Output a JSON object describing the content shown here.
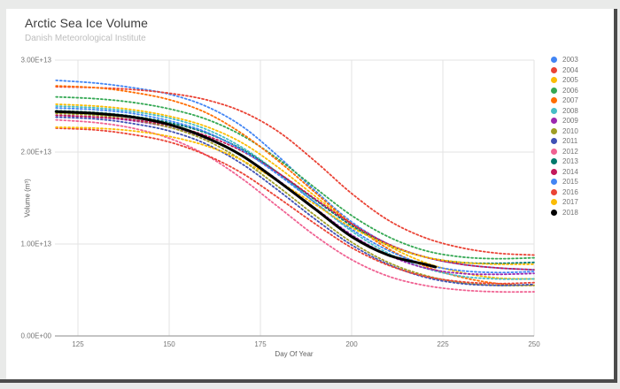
{
  "chart_data": {
    "type": "line",
    "title": "Arctic Sea Ice Volume",
    "subtitle": "Danish Meteorological Institute",
    "xlabel": "Day Of Year",
    "ylabel": "Volume (m³)",
    "xlim": [
      118.5,
      250
    ],
    "ylim": [
      0,
      30000000000000.0
    ],
    "grid": true,
    "legend_position": "right",
    "x_ticks": [
      125,
      150,
      175,
      200,
      225,
      250
    ],
    "y_ticks": [
      {
        "label": "0.00E+00",
        "value": 0
      },
      {
        "label": "1.00E+13",
        "value": 10000000000000.0
      },
      {
        "label": "2.00E+13",
        "value": 20000000000000.0
      },
      {
        "label": "3.00E+13",
        "value": 30000000000000.0
      }
    ],
    "days": [
      119,
      130,
      140,
      150,
      160,
      170,
      180,
      190,
      200,
      210,
      220,
      230,
      240,
      250
    ],
    "series": [
      {
        "name": "2003",
        "color": "#4285F4",
        "style": "dotted",
        "values": [
          27800000000000.0,
          27500000000000.0,
          27000000000000.0,
          26300000000000.0,
          25000000000000.0,
          22800000000000.0,
          19500000000000.0,
          15800000000000.0,
          12400000000000.0,
          10000000000000.0,
          8600000000000.0,
          7800000000000.0,
          7400000000000.0,
          7200000000000.0
        ]
      },
      {
        "name": "2004",
        "color": "#EA4335",
        "style": "dotted",
        "values": [
          27100000000000.0,
          27000000000000.0,
          26800000000000.0,
          26400000000000.0,
          25700000000000.0,
          24400000000000.0,
          22200000000000.0,
          19000000000000.0,
          15500000000000.0,
          12600000000000.0,
          10700000000000.0,
          9600000000000.0,
          9000000000000.0,
          8800000000000.0
        ]
      },
      {
        "name": "2005",
        "color": "#FBBC04",
        "style": "dotted",
        "values": [
          25200000000000.0,
          25000000000000.0,
          24600000000000.0,
          23900000000000.0,
          22800000000000.0,
          21000000000000.0,
          18300000000000.0,
          15200000000000.0,
          12200000000000.0,
          9800000000000.0,
          8000000000000.0,
          6900000000000.0,
          6300000000000.0,
          6200000000000.0
        ]
      },
      {
        "name": "2006",
        "color": "#34A853",
        "style": "dotted",
        "values": [
          26000000000000.0,
          25800000000000.0,
          25400000000000.0,
          24700000000000.0,
          23600000000000.0,
          21800000000000.0,
          19200000000000.0,
          16100000000000.0,
          13100000000000.0,
          10800000000000.0,
          9300000000000.0,
          8600000000000.0,
          8400000000000.0,
          8500000000000.0
        ]
      },
      {
        "name": "2007",
        "color": "#FF6D01",
        "style": "dotted",
        "values": [
          27200000000000.0,
          27000000000000.0,
          26500000000000.0,
          25700000000000.0,
          24300000000000.0,
          22000000000000.0,
          19000000000000.0,
          15600000000000.0,
          12200000000000.0,
          9500000000000.0,
          7600000000000.0,
          6400000000000.0,
          5700000000000.0,
          5500000000000.0
        ]
      },
      {
        "name": "2008",
        "color": "#46BDC6",
        "style": "dotted",
        "values": [
          25000000000000.0,
          24800000000000.0,
          24400000000000.0,
          23700000000000.0,
          22500000000000.0,
          20500000000000.0,
          17700000000000.0,
          14500000000000.0,
          11400000000000.0,
          9000000000000.0,
          7400000000000.0,
          6500000000000.0,
          6200000000000.0,
          6200000000000.0
        ]
      },
      {
        "name": "2009",
        "color": "#9C27B0",
        "style": "dotted",
        "values": [
          24000000000000.0,
          23800000000000.0,
          23400000000000.0,
          22700000000000.0,
          21500000000000.0,
          19600000000000.0,
          16900000000000.0,
          13900000000000.0,
          11000000000000.0,
          8800000000000.0,
          7400000000000.0,
          6800000000000.0,
          6700000000000.0,
          6800000000000.0
        ]
      },
      {
        "name": "2010",
        "color": "#9E9D24",
        "style": "dotted",
        "values": [
          24200000000000.0,
          24000000000000.0,
          23500000000000.0,
          22700000000000.0,
          21300000000000.0,
          19100000000000.0,
          16200000000000.0,
          13100000000000.0,
          10200000000000.0,
          8000000000000.0,
          6600000000000.0,
          5800000000000.0,
          5500000000000.0,
          5500000000000.0
        ]
      },
      {
        "name": "2011",
        "color": "#3F51B5",
        "style": "dotted",
        "values": [
          23800000000000.0,
          23600000000000.0,
          23100000000000.0,
          22300000000000.0,
          20900000000000.0,
          18700000000000.0,
          15800000000000.0,
          12700000000000.0,
          9900000000000.0,
          7800000000000.0,
          6400000000000.0,
          5700000000000.0,
          5500000000000.0,
          5600000000000.0
        ]
      },
      {
        "name": "2012",
        "color": "#F06292",
        "style": "dotted",
        "values": [
          23500000000000.0,
          23200000000000.0,
          22600000000000.0,
          21500000000000.0,
          19700000000000.0,
          17100000000000.0,
          14000000000000.0,
          10900000000000.0,
          8300000000000.0,
          6500000000000.0,
          5500000000000.0,
          5000000000000.0,
          4800000000000.0,
          4800000000000.0
        ]
      },
      {
        "name": "2013",
        "color": "#00796B",
        "style": "dotted",
        "values": [
          24500000000000.0,
          24300000000000.0,
          23900000000000.0,
          23200000000000.0,
          22100000000000.0,
          20300000000000.0,
          17700000000000.0,
          14800000000000.0,
          12000000000000.0,
          9900000000000.0,
          8600000000000.0,
          8000000000000.0,
          7900000000000.0,
          8000000000000.0
        ]
      },
      {
        "name": "2014",
        "color": "#C2185B",
        "style": "dotted",
        "values": [
          24000000000000.0,
          23800000000000.0,
          23500000000000.0,
          22900000000000.0,
          21800000000000.0,
          20100000000000.0,
          17700000000000.0,
          14900000000000.0,
          12200000000000.0,
          10000000000000.0,
          8600000000000.0,
          7800000000000.0,
          7400000000000.0,
          7200000000000.0
        ]
      },
      {
        "name": "2015",
        "color": "#4285F4",
        "style": "dotted",
        "values": [
          24800000000000.0,
          24600000000000.0,
          24200000000000.0,
          23400000000000.0,
          22200000000000.0,
          20200000000000.0,
          17500000000000.0,
          14500000000000.0,
          11600000000000.0,
          9300000000000.0,
          7800000000000.0,
          7100000000000.0,
          6900000000000.0,
          7000000000000.0
        ]
      },
      {
        "name": "2016",
        "color": "#EA4335",
        "style": "dotted",
        "values": [
          22600000000000.0,
          22400000000000.0,
          21900000000000.0,
          21100000000000.0,
          19700000000000.0,
          17700000000000.0,
          15000000000000.0,
          12200000000000.0,
          9600000000000.0,
          7700000000000.0,
          6500000000000.0,
          5900000000000.0,
          5700000000000.0,
          5800000000000.0
        ]
      },
      {
        "name": "2017",
        "color": "#FBBC04",
        "style": "dotted",
        "values": [
          22700000000000.0,
          22600000000000.0,
          22300000000000.0,
          21700000000000.0,
          20700000000000.0,
          19100000000000.0,
          16800000000000.0,
          14300000000000.0,
          11800000000000.0,
          9900000000000.0,
          8600000000000.0,
          8000000000000.0,
          7800000000000.0,
          7800000000000.0
        ]
      },
      {
        "name": "2018",
        "color": "#000000",
        "style": "solid",
        "days": [
          119,
          130,
          140,
          150,
          160,
          170,
          180,
          190,
          200,
          210,
          220,
          223
        ],
        "values": [
          24400000000000.0,
          24200000000000.0,
          23800000000000.0,
          23000000000000.0,
          21600000000000.0,
          19600000000000.0,
          16800000000000.0,
          13800000000000.0,
          10800000000000.0,
          8800000000000.0,
          7800000000000.0,
          7500000000000.0
        ]
      }
    ]
  }
}
